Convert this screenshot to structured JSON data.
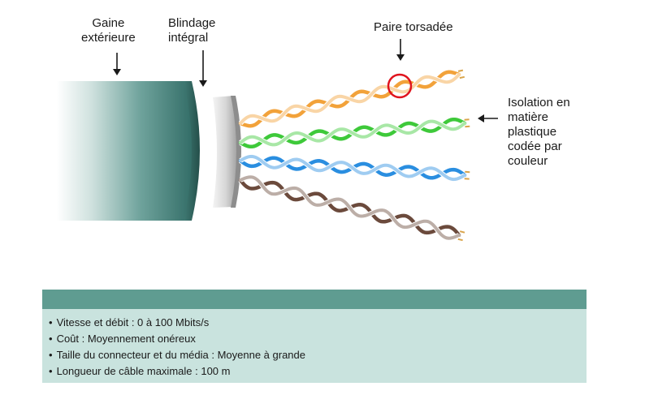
{
  "labels": {
    "gaine_line1": "Gaine",
    "gaine_line2": "extérieure",
    "blindage_line1": "Blindage",
    "blindage_line2": "intégral",
    "paire": "Paire torsadée",
    "isolation_line1": "Isolation en",
    "isolation_line2": "matière",
    "isolation_line3": "plastique",
    "isolation_line4": "codée par",
    "isolation_line5": "couleur"
  },
  "wire_pairs": [
    {
      "color": "orange",
      "hex": "#f2a23a"
    },
    {
      "color": "green",
      "hex": "#3ec93a"
    },
    {
      "color": "blue",
      "hex": "#2a8ee0"
    },
    {
      "color": "brown",
      "hex": "#6b4a3c"
    }
  ],
  "colors": {
    "jacket": "#3d7872",
    "panel_header": "#5f9c91",
    "panel_body": "#c9e3de",
    "highlight_circle": "#e0141e"
  },
  "specs": [
    {
      "text": "Vitesse et débit : 0 à 100 Mbits/s"
    },
    {
      "text": "Coût : Moyennement onéreux"
    },
    {
      "text": "Taille du connecteur et du média :  Moyenne à grande"
    },
    {
      "text": "Longueur de câble maximale :  100 m"
    }
  ]
}
